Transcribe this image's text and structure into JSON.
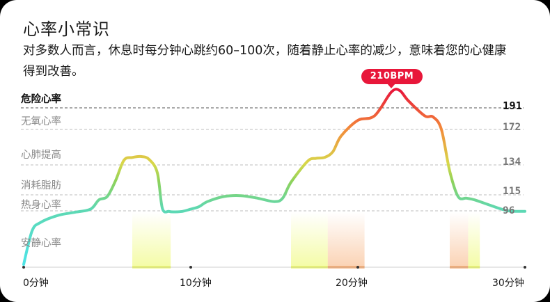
{
  "card": {
    "title": "心率小常识",
    "description": "对多数人而言，休息时每分钟心跳约60–100次，随着静止心率的减少，意味着您的心健康得到改善。"
  },
  "zones": {
    "danger": "危险心率",
    "anaerobic": "无氧心率",
    "cardio": "心肺提高",
    "fatburn": "消耗脂肪",
    "warmup": "热身心率",
    "resting": "安静心率"
  },
  "thresholds": {
    "danger": "191",
    "anaerobic": "172",
    "cardio": "134",
    "fatburn": "115",
    "warmup": "96"
  },
  "peak": {
    "label": "210BPM"
  },
  "x_axis": {
    "t0": "0分钟",
    "t10": "10分钟",
    "t20": "20分钟",
    "t30": "30分钟"
  },
  "chart_data": {
    "type": "line",
    "x_unit": "分钟",
    "x": [
      0,
      0.5,
      1,
      2,
      3,
      4,
      4.5,
      5,
      5.5,
      6,
      6.5,
      7,
      7.5,
      8,
      8.3,
      8.7,
      9,
      9.5,
      10,
      10.5,
      11,
      12,
      13,
      14,
      15,
      15.5,
      16,
      17,
      17.5,
      18,
      18.5,
      19,
      20,
      21,
      22,
      22.5,
      23,
      24,
      24.5,
      25,
      25.5,
      26,
      26.5,
      27,
      28,
      29,
      30
    ],
    "y": [
      -5,
      58,
      74,
      87,
      93,
      98,
      109,
      113,
      124,
      139,
      142,
      143,
      140,
      129,
      99,
      95,
      94,
      95,
      98,
      101,
      107,
      113,
      114,
      111,
      107,
      111,
      123,
      138,
      141,
      142,
      148,
      165,
      180,
      184,
      210,
      212,
      200,
      184,
      183,
      172,
      130,
      113,
      111,
      109,
      102,
      96,
      95
    ],
    "xlim": [
      0,
      30
    ],
    "reference_lines": [
      191,
      172,
      134,
      115,
      96
    ],
    "peak_label": "210BPM",
    "zone_colors": {
      "resting": "#4de3e6",
      "warmup": "#5ed8b2",
      "fatburn": "#8fd25a",
      "cardio": "#d8d84a",
      "anaerobic": "#f38a3a",
      "danger": "#e8173a"
    },
    "duration_markers": [
      {
        "from": 6.5,
        "to": 8.8,
        "color": "#e7f73a"
      },
      {
        "from": 16.0,
        "to": 18.2,
        "color": "#e7f73a"
      },
      {
        "from": 18.2,
        "to": 20.4,
        "color": "#f38a3a"
      },
      {
        "from": 25.5,
        "to": 26.6,
        "color": "#f38a3a"
      },
      {
        "from": 26.6,
        "to": 27.3,
        "color": "#e7f73a"
      }
    ]
  }
}
